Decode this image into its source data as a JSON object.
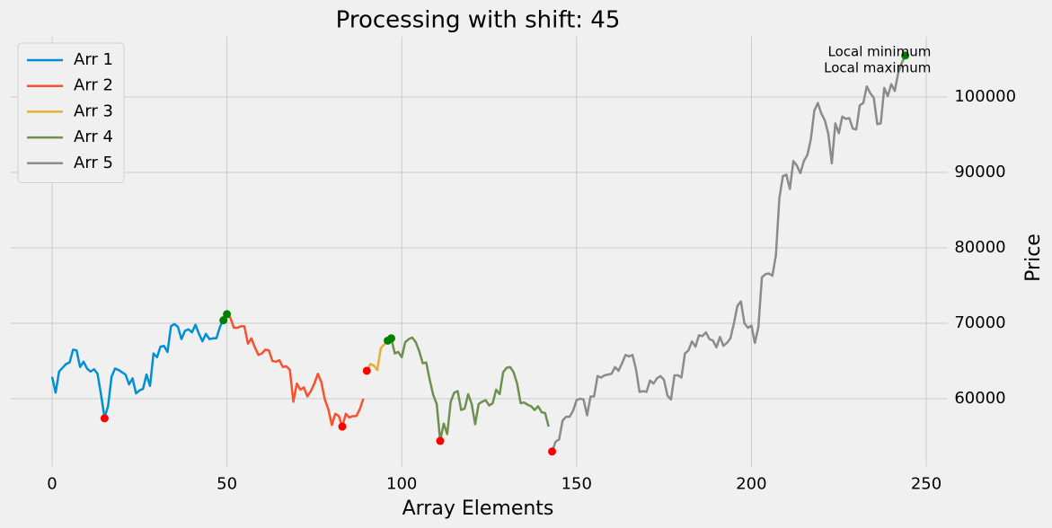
{
  "chart_data": {
    "type": "line",
    "title": "Processing with shift: 45",
    "xlabel": "Array Elements",
    "ylabel": "Price",
    "xlim": [
      -12,
      256
    ],
    "ylim": [
      51000,
      108000
    ],
    "xticks": [
      0,
      50,
      100,
      150,
      200,
      250
    ],
    "yticks": [
      60000,
      70000,
      80000,
      90000,
      100000
    ],
    "grid": true,
    "legend": "upper left",
    "yaxis_side": "right",
    "series": [
      {
        "name": "Arr 1",
        "color": "#008fd5",
        "x": [
          0,
          1,
          2,
          3,
          4,
          5,
          6,
          7,
          8,
          9,
          10,
          11,
          12,
          13,
          14,
          15,
          16,
          17,
          18,
          19,
          20,
          21,
          22,
          23,
          24,
          25,
          26,
          27,
          28,
          29,
          30,
          31,
          32,
          33,
          34,
          35,
          36,
          37,
          38,
          39,
          40,
          41,
          42,
          43,
          44,
          45,
          46,
          47,
          48,
          49,
          50
        ],
        "values": [
          62900,
          60800,
          63600,
          64100,
          64600,
          64800,
          66500,
          66400,
          64200,
          64900,
          64000,
          63600,
          63900,
          63300,
          60500,
          57500,
          59000,
          62900,
          64000,
          63800,
          63500,
          63200,
          61900,
          62700,
          60700,
          61100,
          61300,
          63200,
          61700,
          66000,
          65500,
          66900,
          67000,
          66200,
          69600,
          69900,
          69500,
          67900,
          69000,
          69200,
          68800,
          69800,
          68600,
          67600,
          68600,
          67900,
          68000,
          68000,
          69500,
          70600,
          71400
        ]
      },
      {
        "name": "Arr 2",
        "color": "#fc4f30",
        "x": [
          50,
          51,
          52,
          53,
          54,
          55,
          56,
          57,
          58,
          59,
          60,
          61,
          62,
          63,
          64,
          65,
          66,
          67,
          68,
          69,
          70,
          71,
          72,
          73,
          74,
          75,
          76,
          77,
          78,
          79,
          80,
          81,
          82,
          83,
          84,
          85,
          86,
          87,
          88,
          89
        ],
        "values": [
          71400,
          70700,
          69400,
          69400,
          69600,
          69600,
          67300,
          68000,
          66800,
          65800,
          66000,
          66500,
          66400,
          65000,
          64900,
          65100,
          64200,
          64300,
          63800,
          59600,
          62000,
          61200,
          61500,
          60300,
          61000,
          62000,
          63300,
          62200,
          59900,
          58600,
          56500,
          58000,
          57700,
          56300,
          58000,
          57500,
          57700,
          57700,
          58600,
          60000
        ]
      },
      {
        "name": "Arr 3",
        "color": "#e5ae38",
        "x": [
          90,
          91,
          92,
          93,
          94,
          95,
          96,
          97
        ],
        "values": [
          63500,
          64600,
          64400,
          63800,
          66700,
          67200,
          67600,
          68000
        ]
      },
      {
        "name": "Arr 4",
        "color": "#6d904f",
        "x": [
          97,
          98,
          99,
          100,
          101,
          102,
          103,
          104,
          105,
          106,
          107,
          108,
          109,
          110,
          111,
          112,
          113,
          114,
          115,
          116,
          117,
          118,
          119,
          120,
          121,
          122,
          123,
          124,
          125,
          126,
          127,
          128,
          129,
          130,
          131,
          132,
          133,
          134,
          135,
          136,
          137,
          138,
          139,
          140,
          141,
          142
        ],
        "values": [
          68000,
          66000,
          66200,
          65500,
          67500,
          67900,
          68100,
          67500,
          66300,
          64700,
          64800,
          62500,
          60500,
          59300,
          54400,
          56700,
          55300,
          59600,
          60800,
          61000,
          58500,
          58700,
          60600,
          59300,
          56600,
          59300,
          59600,
          59800,
          59100,
          59400,
          61200,
          60600,
          63500,
          64100,
          64200,
          63500,
          62000,
          59400,
          59500,
          59200,
          59000,
          58500,
          59000,
          58200,
          58100,
          56300
        ]
      },
      {
        "name": "Arr 5",
        "color": "#8b8b8b",
        "x": [
          143,
          144,
          145,
          146,
          147,
          148,
          149,
          150,
          151,
          152,
          153,
          154,
          155,
          156,
          157,
          158,
          159,
          160,
          161,
          162,
          163,
          164,
          165,
          166,
          167,
          168,
          169,
          170,
          171,
          172,
          173,
          174,
          175,
          176,
          177,
          178,
          179,
          180,
          181,
          182,
          183,
          184,
          185,
          186,
          187,
          188,
          189,
          190,
          191,
          192,
          193,
          194,
          195,
          196,
          197,
          198,
          199,
          200,
          201,
          202,
          203,
          204,
          205,
          206,
          207,
          208,
          209,
          210,
          211,
          212,
          213,
          214,
          215,
          216,
          217,
          218,
          219,
          220,
          221,
          222,
          223,
          224,
          225,
          226,
          227,
          228,
          229,
          230,
          231,
          232,
          233,
          234,
          235,
          236,
          237,
          238,
          239,
          240,
          241,
          242,
          243,
          244
        ],
        "values": [
          53000,
          54300,
          54600,
          57100,
          57600,
          57600,
          58400,
          59800,
          60000,
          59900,
          57800,
          60300,
          60300,
          63000,
          62800,
          63100,
          63200,
          63300,
          64200,
          63700,
          64700,
          65800,
          65600,
          65800,
          63900,
          60900,
          61000,
          60900,
          62400,
          62000,
          62700,
          63000,
          62500,
          60400,
          59900,
          63100,
          63100,
          62800,
          66000,
          66400,
          67600,
          66900,
          68400,
          68300,
          68800,
          67900,
          67700,
          66800,
          68200,
          67000,
          67400,
          68000,
          70000,
          72300,
          72900,
          70000,
          69400,
          69700,
          67400,
          69500,
          76100,
          76500,
          76600,
          76300,
          79000,
          86600,
          89500,
          89700,
          87800,
          91500,
          90900,
          89900,
          91500,
          92300,
          94400,
          98200,
          99200,
          97800,
          96900,
          95100,
          91200,
          96500,
          95200,
          97400,
          97100,
          97200,
          95800,
          95700,
          98900,
          99200,
          101400,
          100500,
          99900,
          96400,
          96500,
          101200,
          100100,
          101700,
          100800,
          103200,
          104500,
          105500
        ]
      }
    ],
    "markers": [
      {
        "name": "Local minimum",
        "color": "red",
        "x": [
          15,
          83,
          90,
          111,
          143
        ],
        "values": [
          57400,
          56300,
          63700,
          54400,
          53000
        ]
      },
      {
        "name": "Local maximum",
        "color": "green",
        "x": [
          49,
          50,
          96,
          97,
          244
        ],
        "values": [
          70400,
          71200,
          67700,
          68000,
          105500
        ]
      }
    ]
  }
}
